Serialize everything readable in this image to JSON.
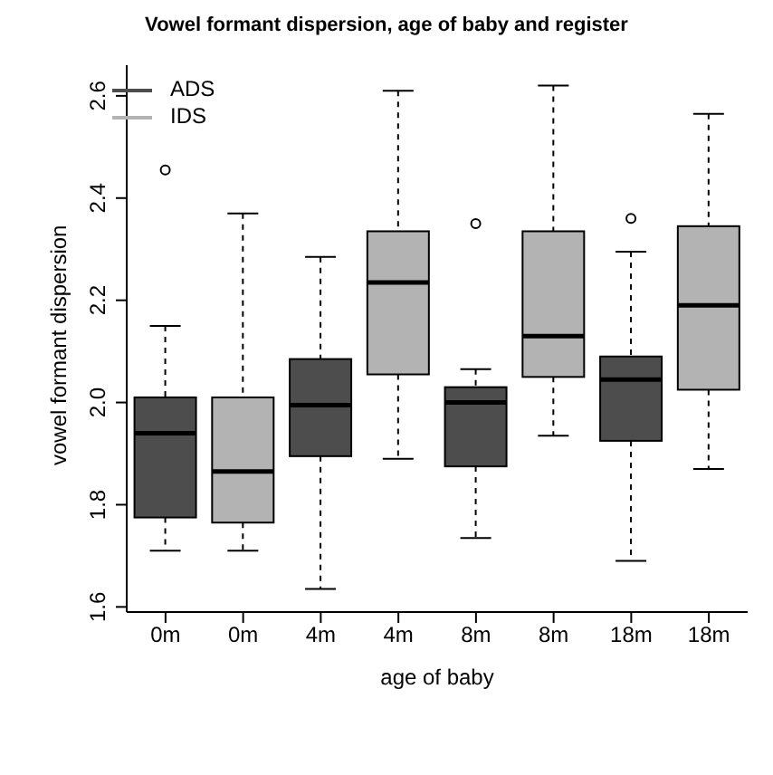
{
  "chart_data": {
    "type": "box",
    "title": "Vowel formant dispersion, age of baby and register",
    "xlabel": "age of baby",
    "ylabel": "vowel formant dispersion",
    "categories": [
      "0m",
      "0m",
      "4m",
      "4m",
      "8m",
      "8m",
      "18m",
      "18m"
    ],
    "ylim": [
      1.59,
      2.66
    ],
    "yticks": [
      {
        "value": 1.6,
        "label": "1.6"
      },
      {
        "value": 1.8,
        "label": "1.8"
      },
      {
        "value": 2,
        "label": "2.0"
      },
      {
        "value": 2.2,
        "label": "2.2"
      },
      {
        "value": 2.4,
        "label": "2.4"
      },
      {
        "value": 2.6,
        "label": "2.6"
      }
    ],
    "legend": "top left",
    "grid": false,
    "series": [
      {
        "name": "ADS",
        "color": "#4d4d4d",
        "boxes": [
          {
            "low": 1.71,
            "q1": 1.775,
            "median": 1.94,
            "q3": 2.01,
            "high": 2.15,
            "outliers": [
              2.455
            ]
          },
          null,
          {
            "low": 1.635,
            "q1": 1.895,
            "median": 1.995,
            "q3": 2.085,
            "high": 2.285
          },
          null,
          {
            "low": 1.735,
            "q1": 1.875,
            "median": 2.0,
            "q3": 2.03,
            "high": 2.065,
            "outliers": [
              2.35
            ]
          },
          null,
          {
            "low": 1.69,
            "q1": 1.925,
            "median": 2.045,
            "q3": 2.09,
            "high": 2.295,
            "outliers": [
              2.36
            ]
          },
          null
        ]
      },
      {
        "name": "IDS",
        "color": "#b3b3b3",
        "boxes": [
          null,
          {
            "low": 1.71,
            "q1": 1.765,
            "median": 1.865,
            "q3": 2.01,
            "high": 2.37
          },
          null,
          {
            "low": 1.89,
            "q1": 2.055,
            "median": 2.235,
            "q3": 2.335,
            "high": 2.61
          },
          null,
          {
            "low": 1.935,
            "q1": 2.05,
            "median": 2.13,
            "q3": 2.335,
            "high": 2.62
          },
          null,
          {
            "low": 1.87,
            "q1": 2.025,
            "median": 2.19,
            "q3": 2.345,
            "high": 2.565
          }
        ]
      }
    ]
  }
}
